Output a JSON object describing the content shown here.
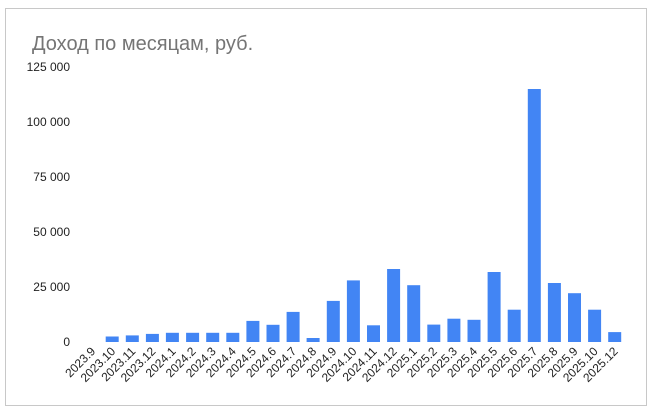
{
  "chart_data": {
    "type": "bar",
    "title": "Доход по месяцам, руб.",
    "xlabel": "",
    "ylabel": "",
    "ylim": [
      0,
      125000
    ],
    "yticks": [
      0,
      25000,
      50000,
      75000,
      100000,
      125000
    ],
    "ytick_labels": [
      "0",
      "25 000",
      "50 000",
      "75 000",
      "100 000",
      "125 000"
    ],
    "grid": false,
    "legend": "none",
    "bar_color": "#4285f4",
    "categories": [
      "2023.9",
      "2023.10",
      "2023.11",
      "2023.12",
      "2024.1",
      "2024.2",
      "2024.3",
      "2024.4",
      "2024.5",
      "2024.6",
      "2024.7",
      "2024.8",
      "2024.9",
      "2024.10",
      "2024.11",
      "2024.12",
      "2025.1",
      "2025.2",
      "2025.3",
      "2025.4",
      "2025.5",
      "2025.6",
      "2025.7",
      "2025.8",
      "2025.9",
      "2025.10",
      "2025.12"
    ],
    "values": [
      0,
      2500,
      3000,
      3700,
      4200,
      4200,
      4200,
      4200,
      9600,
      7800,
      13700,
      1800,
      18700,
      28000,
      7600,
      33200,
      25800,
      7900,
      10600,
      10100,
      31800,
      14700,
      115000,
      26800,
      22200,
      14700,
      4500
    ]
  }
}
